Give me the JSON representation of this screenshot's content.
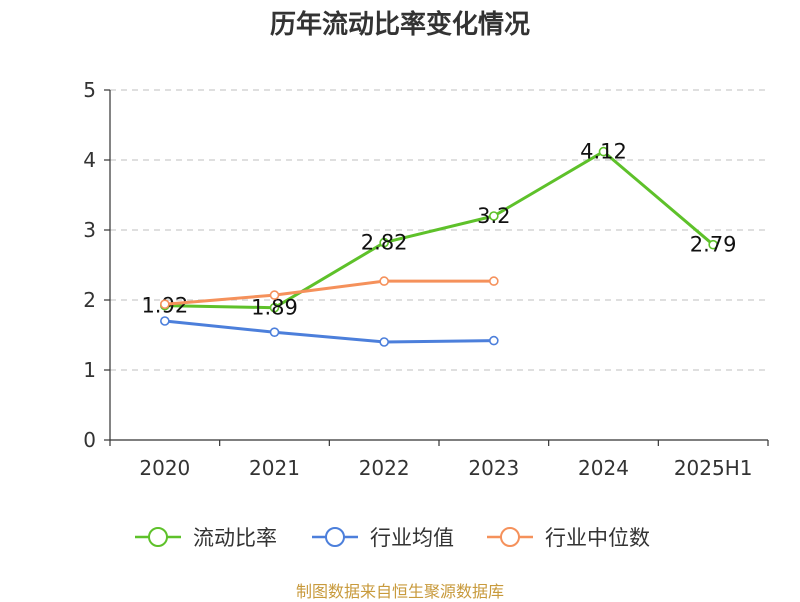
{
  "chart_data": {
    "type": "line",
    "title": "历年流动比率变化情况",
    "categories": [
      "2020",
      "2021",
      "2022",
      "2023",
      "2024",
      "2025H1"
    ],
    "ylim": [
      0,
      5
    ],
    "yticks": [
      0,
      1,
      2,
      3,
      4,
      5
    ],
    "grid": true,
    "legend_position": "bottom",
    "series": [
      {
        "name": "流动比率",
        "color": "#5ec12a",
        "values": [
          1.92,
          1.89,
          2.82,
          3.2,
          4.12,
          2.79
        ],
        "show_labels": true
      },
      {
        "name": "行业均值",
        "color": "#4c7fdb",
        "values": [
          1.7,
          1.54,
          1.4,
          1.42,
          null,
          null
        ],
        "show_labels": false
      },
      {
        "name": "行业中位数",
        "color": "#f5915b",
        "values": [
          1.94,
          2.07,
          2.27,
          2.27,
          null,
          null
        ],
        "show_labels": false
      }
    ]
  },
  "source_note": "制图数据来自恒生聚源数据库"
}
